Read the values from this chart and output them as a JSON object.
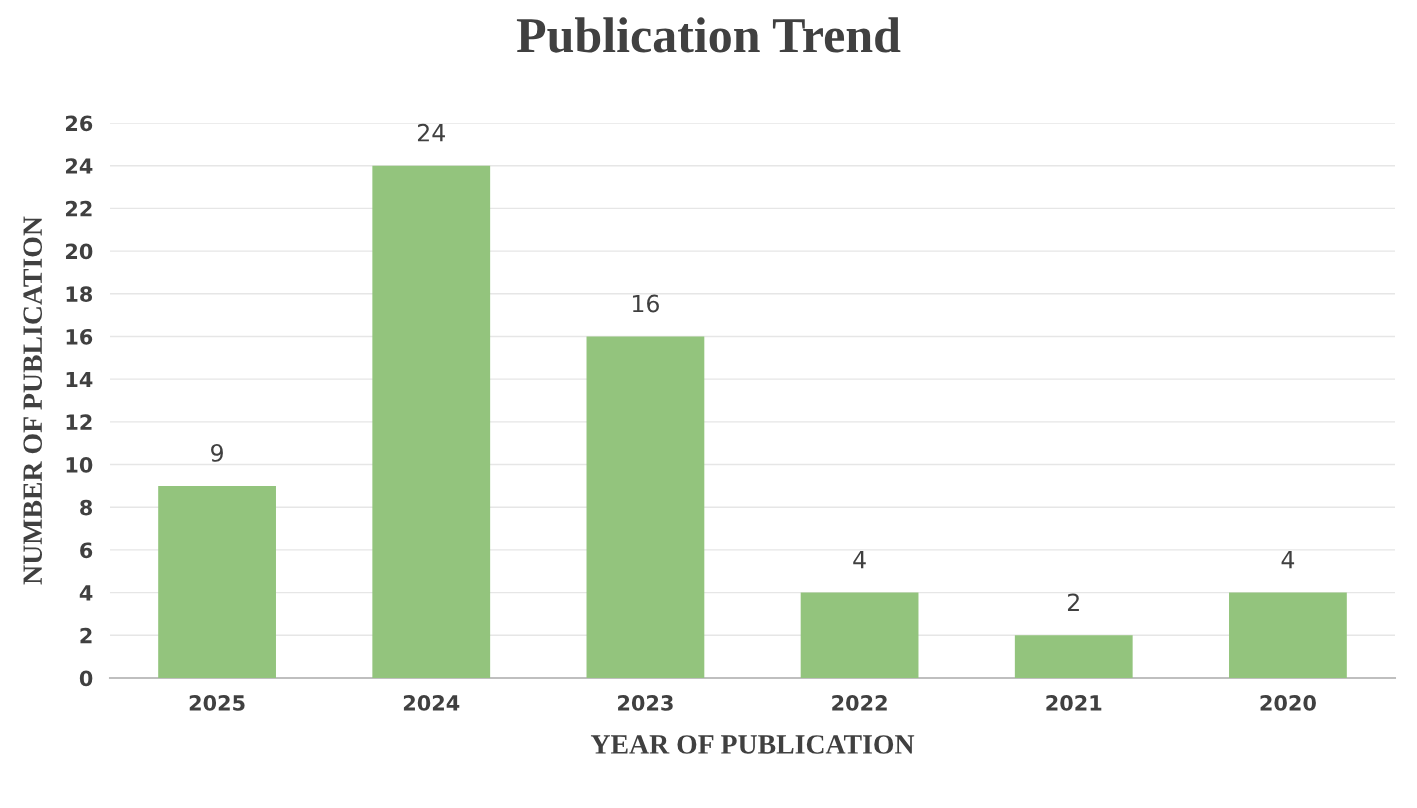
{
  "chart_data": {
    "type": "bar",
    "title": "Publication Trend",
    "xlabel": "YEAR OF PUBLICATION",
    "ylabel": "NUMBER OF PUBLICATION",
    "categories": [
      "2025",
      "2024",
      "2023",
      "2022",
      "2021",
      "2020"
    ],
    "values": [
      9,
      24,
      16,
      4,
      2,
      4
    ],
    "color": "#93c47d",
    "ylim": [
      0,
      26
    ],
    "yticks": [
      0,
      2,
      4,
      6,
      8,
      10,
      12,
      14,
      16,
      18,
      20,
      22,
      24,
      26
    ],
    "grid": "y",
    "data_labels": true
  }
}
